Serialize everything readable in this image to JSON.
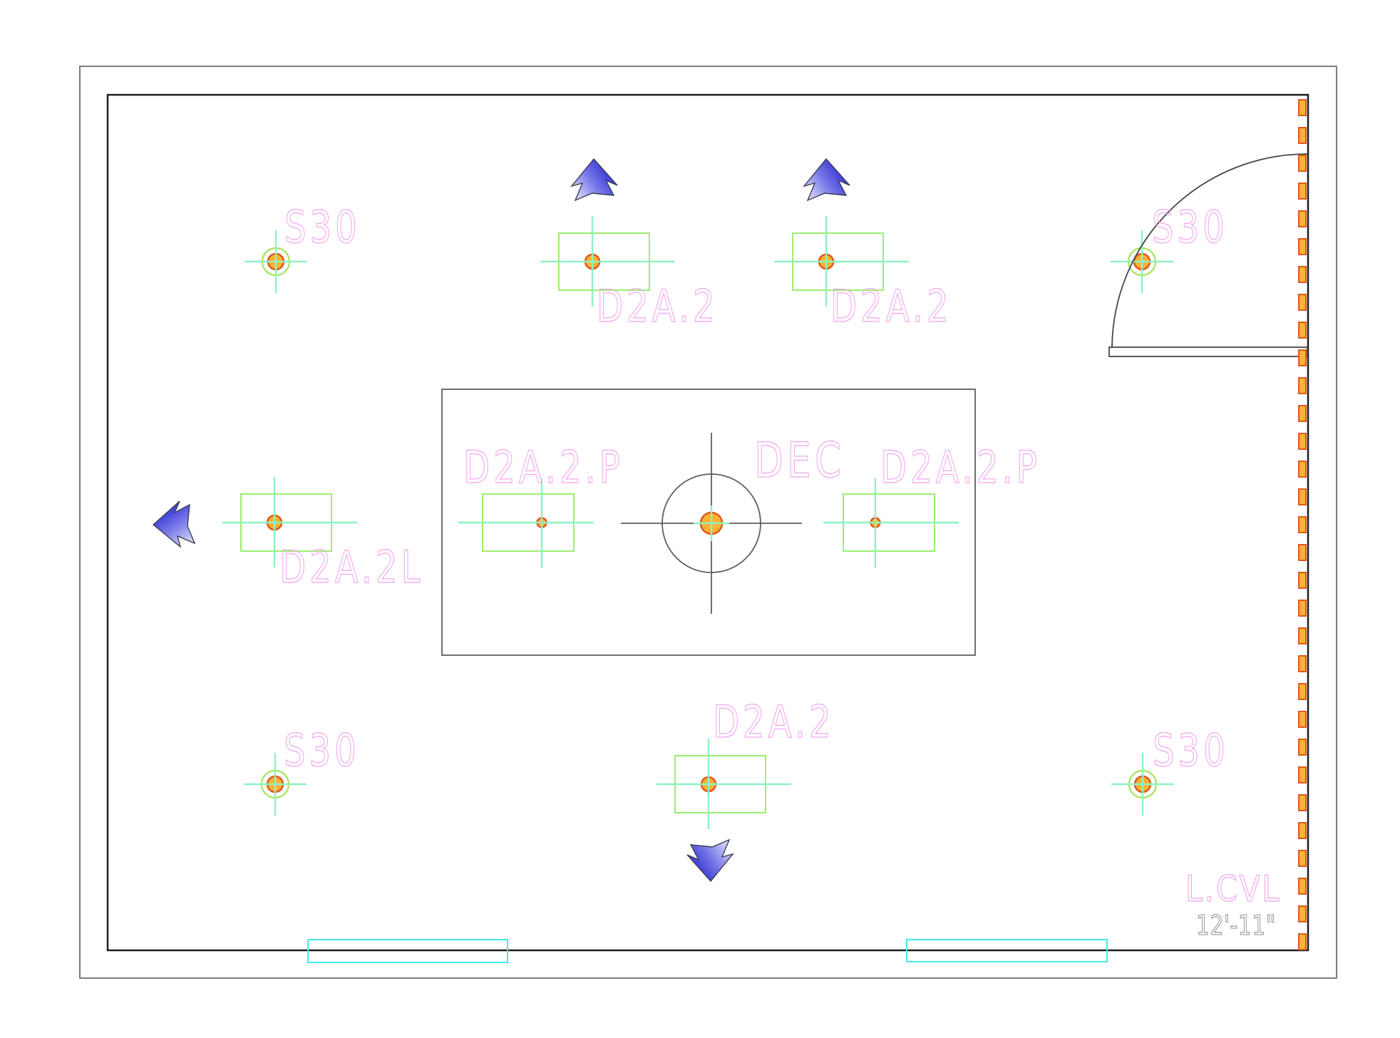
{
  "drawing": {
    "type": "reflected-ceiling-lighting-plan",
    "labels": {
      "s30_top_left": "S30",
      "s30_top_right": "S30",
      "s30_bottom_left": "S30",
      "s30_bottom_right": "S30",
      "d2a2_top_1": "D2A.2",
      "d2a2_top_2": "D2A.2",
      "d2a2p_left": "D2A.2.P",
      "dec": "DEC",
      "d2a2p_right": "D2A.2.P",
      "d2a2_left": "D2A.2L",
      "d2a2_bottom": "D2A.2",
      "l_cvl": "L.CVL",
      "dimension": "12'-11\""
    },
    "symbols": {
      "s30_fixtures": 4,
      "rectangular_downlight_fixtures": 4,
      "rectangular_pendant_fixtures": 2,
      "dec_center_fixture": 1,
      "direction_arrows": [
        "up",
        "up",
        "left",
        "down"
      ],
      "door_swings": 1,
      "wall_hatch_dashes": 31,
      "wall_niche_boxes": 2
    }
  },
  "colors": {
    "pink_label": "#f2a4ef",
    "gray_dim_text": "#8c8c8c",
    "aqua_crosshair": "#8ef2c3",
    "green_fixture": "#9cee6e",
    "green_circle": "#a5e45c",
    "orange_fill": "#fcb233",
    "orange_stroke": "#e0581e",
    "cyan_box": "#45eaea",
    "wall_black": "#1d1d1d",
    "outer_gray": "#7d7d7d",
    "mid_gray": "#5f5f5f",
    "door_gray": "#474747",
    "arrow_blue_dark": "#2424cf",
    "arrow_blue_mid": "#7d7dea",
    "arrow_blue_light": "#f2f2ff",
    "arrow_outline": "#3d3d52"
  }
}
